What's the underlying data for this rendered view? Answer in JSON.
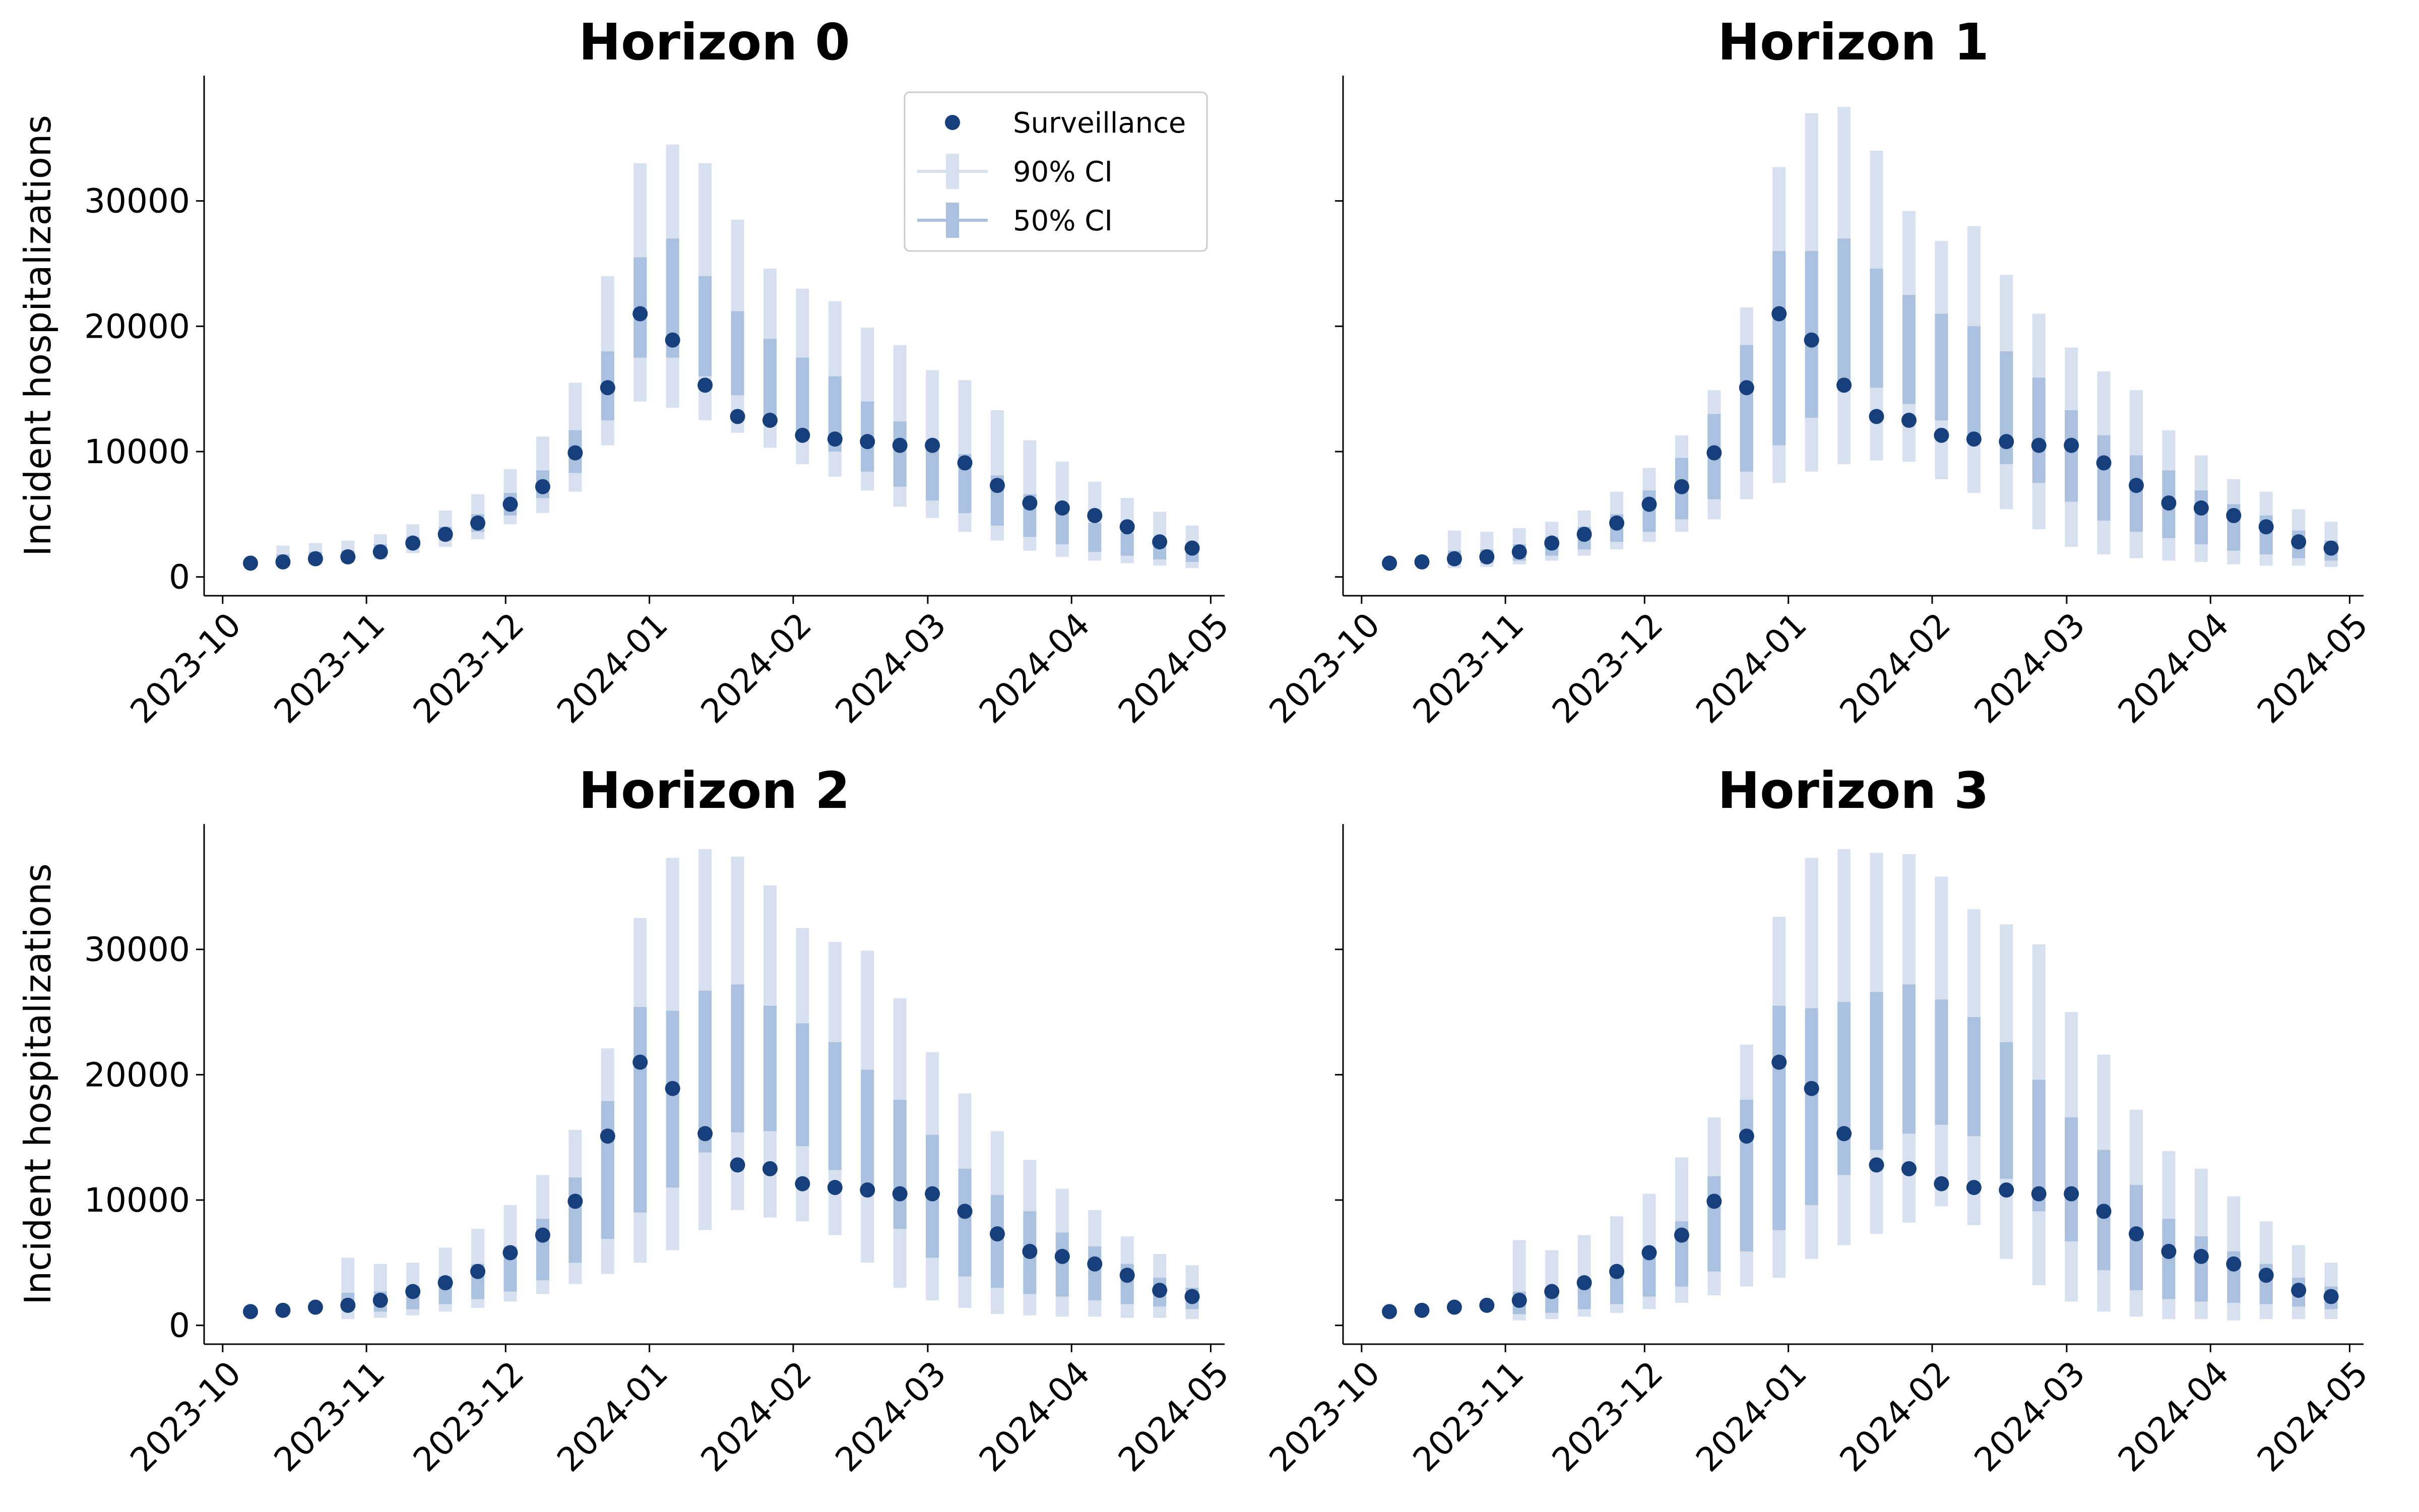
{
  "chart_data": {
    "type": "scatter",
    "ylabel": "Incident hospitalizations",
    "xlabel": "",
    "y_ticks": [
      0,
      10000,
      20000,
      30000
    ],
    "y_range": [
      -1500,
      40000
    ],
    "x_tick_labels": [
      "2023-10",
      "2023-11",
      "2023-12",
      "2024-01",
      "2024-02",
      "2024-03",
      "2024-04",
      "2024-05"
    ],
    "x_tick_dates": [
      "2023-10-01",
      "2023-11-01",
      "2023-12-01",
      "2024-01-01",
      "2024-02-01",
      "2024-03-01",
      "2024-04-01",
      "2024-05-01"
    ],
    "x_range": [
      "2023-09-27",
      "2024-05-04"
    ],
    "legend": {
      "position": "top-right",
      "panel": 0,
      "entries": [
        "Surveillance",
        "90% CI",
        "50% CI"
      ]
    },
    "colors": {
      "surveillance": "#173f7c",
      "ci90": "#d6e0ee",
      "ci50": "#a9c0de"
    },
    "dates": [
      "2023-10-07",
      "2023-10-14",
      "2023-10-21",
      "2023-10-28",
      "2023-11-04",
      "2023-11-11",
      "2023-11-18",
      "2023-11-25",
      "2023-12-02",
      "2023-12-09",
      "2023-12-16",
      "2023-12-23",
      "2023-12-30",
      "2024-01-06",
      "2024-01-13",
      "2024-01-20",
      "2024-01-27",
      "2024-02-03",
      "2024-02-10",
      "2024-02-17",
      "2024-02-24",
      "2024-03-02",
      "2024-03-09",
      "2024-03-16",
      "2024-03-23",
      "2024-03-30",
      "2024-04-06",
      "2024-04-13",
      "2024-04-20",
      "2024-04-27"
    ],
    "surveillance": [
      1100,
      1200,
      1450,
      1600,
      2000,
      2700,
      3400,
      4300,
      5800,
      7200,
      9900,
      15100,
      21000,
      18900,
      15300,
      12800,
      12500,
      11300,
      11000,
      10800,
      10500,
      10500,
      9100,
      7300,
      5900,
      5500,
      4900,
      4000,
      2800,
      2300
    ],
    "panels": [
      {
        "title": "Horizon 0",
        "forecast_start": 1,
        "ci90_low": [
          null,
          800,
          1000,
          1100,
          1400,
          1900,
          2400,
          3000,
          4200,
          5100,
          6800,
          10500,
          14000,
          13500,
          12500,
          11500,
          10300,
          9000,
          8000,
          6900,
          5600,
          4700,
          3600,
          2900,
          2100,
          1600,
          1300,
          1100,
          900,
          700
        ],
        "ci90_high": [
          null,
          2500,
          2700,
          2900,
          3400,
          4200,
          5300,
          6600,
          8600,
          11200,
          15500,
          24000,
          33000,
          34500,
          33000,
          28500,
          24600,
          23000,
          22000,
          19900,
          18500,
          16500,
          15700,
          13300,
          10900,
          9200,
          7600,
          6300,
          5200,
          4100
        ],
        "ci50_low": [
          null,
          1000,
          1200,
          1300,
          1700,
          2300,
          2900,
          3600,
          4900,
          6300,
          8300,
          12500,
          17500,
          17500,
          16000,
          14500,
          12700,
          11300,
          10000,
          8400,
          7200,
          6100,
          5100,
          4100,
          3200,
          2600,
          2000,
          1700,
          1400,
          1200
        ],
        "ci50_high": [
          null,
          1800,
          2000,
          2100,
          2600,
          3200,
          4000,
          5000,
          6700,
          8500,
          11700,
          18000,
          25500,
          27000,
          24000,
          21200,
          19000,
          17500,
          16000,
          14000,
          12400,
          10700,
          9800,
          8100,
          6600,
          5200,
          4300,
          3500,
          2800,
          2200
        ]
      },
      {
        "title": "Horizon 1",
        "forecast_start": 2,
        "ci90_low": [
          null,
          null,
          700,
          800,
          1000,
          1300,
          1700,
          2200,
          2800,
          3600,
          4600,
          6200,
          7500,
          8400,
          9000,
          9300,
          9200,
          7800,
          6700,
          5400,
          3800,
          2400,
          1800,
          1500,
          1300,
          1200,
          1000,
          900,
          900,
          800
        ],
        "ci90_high": [
          null,
          null,
          3700,
          3600,
          3900,
          4400,
          5300,
          6800,
          8700,
          11300,
          14900,
          21500,
          32700,
          37000,
          37500,
          34000,
          29200,
          26800,
          28000,
          24100,
          21000,
          18300,
          16400,
          14900,
          11700,
          9700,
          7800,
          6800,
          5400,
          4400
        ],
        "ci50_low": [
          null,
          null,
          1000,
          1100,
          1300,
          1700,
          2200,
          2800,
          3600,
          4600,
          6200,
          8400,
          10500,
          12700,
          15300,
          15100,
          13800,
          12500,
          10800,
          9000,
          7500,
          6000,
          4500,
          3600,
          3100,
          2600,
          2100,
          1800,
          1500,
          1300
        ],
        "ci50_high": [
          null,
          null,
          2100,
          2200,
          2600,
          3200,
          4000,
          5000,
          6900,
          9500,
          13000,
          18500,
          26000,
          26000,
          27000,
          24600,
          22500,
          21000,
          20000,
          18000,
          15900,
          13300,
          11300,
          9700,
          8500,
          6900,
          5800,
          4900,
          3700,
          2900
        ]
      },
      {
        "title": "Horizon 2",
        "forecast_start": 3,
        "ci90_low": [
          null,
          null,
          null,
          500,
          600,
          800,
          1100,
          1400,
          1900,
          2500,
          3300,
          4100,
          5000,
          6000,
          7600,
          9200,
          8600,
          8300,
          7200,
          5000,
          3000,
          2000,
          1400,
          900,
          800,
          700,
          700,
          600,
          600,
          500
        ],
        "ci90_high": [
          null,
          null,
          null,
          5400,
          4900,
          5000,
          6200,
          7700,
          9600,
          12000,
          15600,
          22100,
          32500,
          37300,
          38000,
          37400,
          35100,
          31700,
          30600,
          29900,
          26100,
          21800,
          18500,
          15500,
          13200,
          10900,
          9200,
          7100,
          5700,
          4800
        ],
        "ci50_low": [
          null,
          null,
          null,
          1200,
          1100,
          1300,
          1700,
          2100,
          2700,
          3600,
          5000,
          6900,
          9000,
          11000,
          13800,
          15400,
          15500,
          14300,
          12400,
          10600,
          7700,
          5400,
          3900,
          3000,
          2500,
          2300,
          2000,
          1700,
          1500,
          1300
        ],
        "ci50_high": [
          null,
          null,
          null,
          2600,
          2700,
          3100,
          3900,
          4900,
          6300,
          8500,
          11800,
          17900,
          25400,
          25100,
          26700,
          27200,
          25500,
          24100,
          22600,
          20400,
          18000,
          15200,
          12500,
          10400,
          9100,
          7400,
          6300,
          4900,
          3800,
          3000
        ]
      },
      {
        "title": "Horizon 3",
        "forecast_start": 4,
        "ci90_low": [
          null,
          null,
          null,
          null,
          400,
          500,
          700,
          1000,
          1300,
          1800,
          2400,
          3100,
          3800,
          5300,
          6400,
          7300,
          8200,
          9500,
          8000,
          5300,
          3200,
          1900,
          1100,
          700,
          500,
          500,
          400,
          500,
          500,
          500
        ],
        "ci90_high": [
          null,
          null,
          null,
          null,
          6800,
          6000,
          7200,
          8700,
          10500,
          13400,
          16600,
          22400,
          32600,
          37300,
          38000,
          37700,
          37600,
          35800,
          33200,
          32000,
          30400,
          25000,
          21600,
          17200,
          13900,
          12500,
          10300,
          8300,
          6400,
          5000
        ],
        "ci50_low": [
          null,
          null,
          null,
          null,
          900,
          1000,
          1300,
          1700,
          2300,
          3100,
          4300,
          5900,
          7600,
          9600,
          12000,
          14000,
          15300,
          16000,
          15100,
          11700,
          9100,
          6700,
          4400,
          2800,
          2100,
          1900,
          1800,
          1700,
          1500,
          1300
        ],
        "ci50_high": [
          null,
          null,
          null,
          null,
          2700,
          3000,
          3600,
          4500,
          6000,
          8300,
          11900,
          18000,
          25500,
          25300,
          25800,
          26600,
          27200,
          26000,
          24600,
          22600,
          19600,
          16600,
          14000,
          11200,
          8500,
          7100,
          5900,
          4900,
          3800,
          3100
        ]
      }
    ]
  }
}
